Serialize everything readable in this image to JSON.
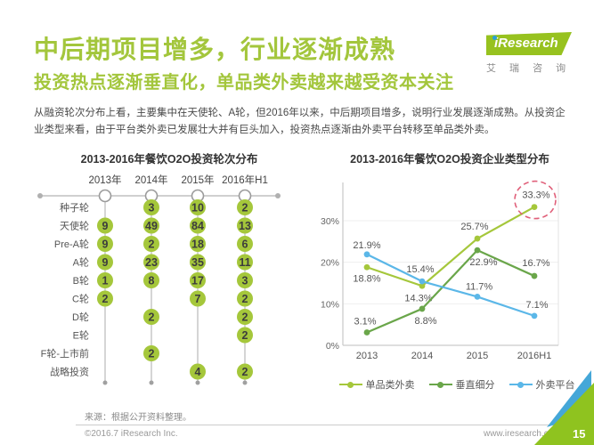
{
  "page": {
    "title": "中后期项目增多，行业逐渐成熟",
    "subtitle": "投资热点逐渐垂直化，单品类外卖越来越受资本关注",
    "body": "从融资轮次分布上看，主要集中在天使轮、A轮，但2016年以来，中后期项目增多，说明行业发展逐渐成熟。从投资企业类型来看，由于平台类外卖已发展壮大并有巨头加入，投资热点逐渐由外卖平台转移至单品类外卖。",
    "page_number": "15"
  },
  "logo": {
    "text": "iResearch",
    "subtext": "艾 瑞 咨 询"
  },
  "footer": {
    "source": "来源：根据公开资料整理。",
    "copyright": "©2016.7 iResearch Inc.",
    "website": "www.iresearch.com.cn"
  },
  "colors": {
    "accent_green": "#a3c63c",
    "dot_fill": "#a5c73b",
    "dot_number": "#3c3c3c",
    "axis_gray": "#c9c9c9",
    "highlight_red": "#e0607a"
  },
  "chart_data": [
    {
      "type": "table",
      "title": "2013-2016年餐饮O2O投资轮次分布",
      "columns": [
        "2013年",
        "2014年",
        "2015年",
        "2016年H1"
      ],
      "rows": [
        "种子轮",
        "天使轮",
        "Pre-A轮",
        "A轮",
        "B轮",
        "C轮",
        "D轮",
        "E轮",
        "F轮-上市前",
        "战略投资"
      ],
      "values": [
        [
          null,
          3,
          10,
          2
        ],
        [
          9,
          49,
          84,
          13
        ],
        [
          9,
          2,
          18,
          6
        ],
        [
          9,
          23,
          35,
          11
        ],
        [
          1,
          8,
          17,
          3
        ],
        [
          2,
          null,
          7,
          2
        ],
        [
          null,
          2,
          null,
          2
        ],
        [
          null,
          null,
          null,
          2
        ],
        [
          null,
          2,
          null,
          null
        ],
        [
          null,
          null,
          4,
          2
        ]
      ]
    },
    {
      "type": "line",
      "title": "2013-2016年餐饮O2O投资企业类型分布",
      "x": [
        "2013",
        "2014",
        "2015",
        "2016H1"
      ],
      "series": [
        {
          "name": "单品类外卖",
          "color": "#a5c73b",
          "values": [
            18.8,
            14.3,
            25.7,
            33.3
          ]
        },
        {
          "name": "垂直细分",
          "color": "#6aa64a",
          "values": [
            3.1,
            8.8,
            22.9,
            16.7
          ]
        },
        {
          "name": "外卖平台",
          "color": "#5bb7e8",
          "values": [
            21.9,
            15.4,
            11.7,
            7.1
          ]
        }
      ],
      "yticks": [
        {
          "v": 30,
          "label": "30%"
        },
        {
          "v": 20,
          "label": "20%"
        },
        {
          "v": 10,
          "label": "10%"
        },
        {
          "v": 0,
          "label": "0%"
        }
      ],
      "ylim": [
        0,
        37
      ],
      "grid": true,
      "legend_position": "bottom",
      "highlight": {
        "series": "单品类外卖",
        "x": "2016H1",
        "label": "33.3%"
      }
    }
  ]
}
